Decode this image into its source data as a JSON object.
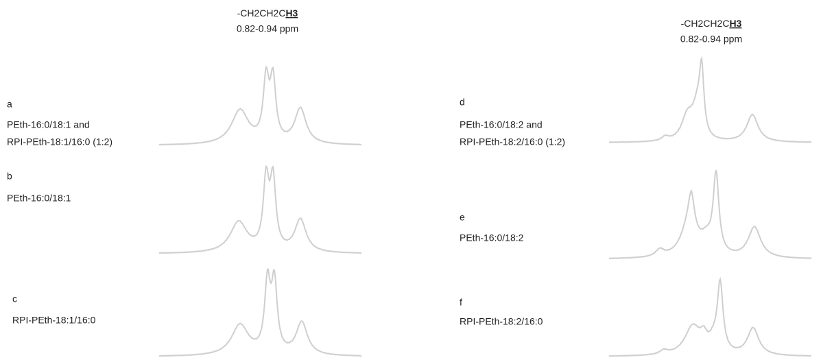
{
  "headers": [
    {
      "prefix": "-CH2CH2C",
      "emphasis": "H3",
      "range": "0.82-0.94 ppm"
    },
    {
      "prefix": "-CH2CH2C",
      "emphasis": "H3",
      "range": "0.82-0.94 ppm"
    }
  ],
  "panels": [
    {
      "label": "a",
      "name": [
        "PEth-16:0/18:1 and",
        "RPI-PEth-18:1/16:0 (1:2)"
      ]
    },
    {
      "label": "b",
      "name": [
        "PEth-16:0/18:1"
      ]
    },
    {
      "label": "c",
      "name": [
        "RPI-PEth-18:1/16:0"
      ]
    },
    {
      "label": "d",
      "name": [
        "PEth-16:0/18:2 and",
        "RPI-PEth-18:2/16:0 (1:2)"
      ]
    },
    {
      "label": "e",
      "name": [
        "PEth-16:0/18:2"
      ]
    },
    {
      "label": "f",
      "name": [
        "RPI-PEth-18:2/16:0"
      ]
    }
  ]
}
